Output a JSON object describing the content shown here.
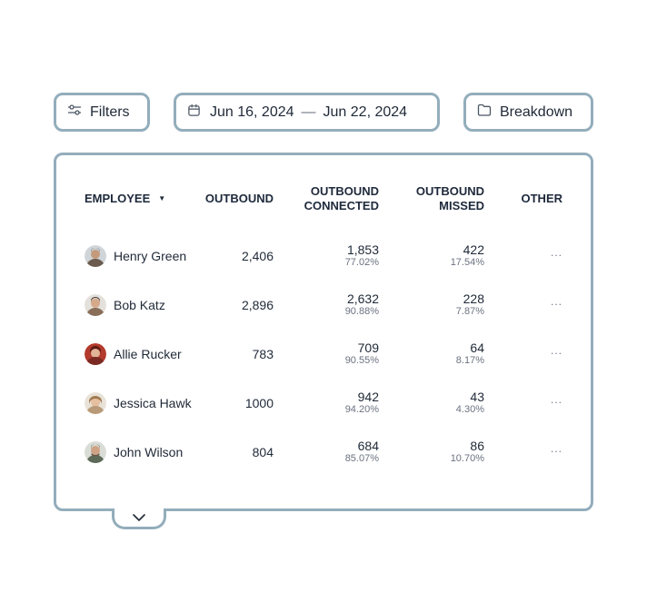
{
  "toolbar": {
    "filters_label": "Filters",
    "date_start": "Jun 16, 2024",
    "date_separator": "—",
    "date_end": "Jun 22, 2024",
    "breakdown_label": "Breakdown"
  },
  "table": {
    "headers": {
      "employee": "EMPLOYEE",
      "outbound": "OUTBOUND",
      "connected_line1": "OUTBOUND",
      "connected_line2": "CONNECTED",
      "missed_line1": "OUTBOUND",
      "missed_line2": "MISSED",
      "other": "OTHER"
    },
    "sort_indicator": "▼",
    "rows": [
      {
        "name": "Henry Green",
        "outbound": "2,406",
        "connected": "1,853",
        "connected_pct": "77.02%",
        "missed": "422",
        "missed_pct": "17.54%",
        "other": "...",
        "avatar_color": "#6b5b4e"
      },
      {
        "name": "Bob Katz",
        "outbound": "2,896",
        "connected": "2,632",
        "connected_pct": "90.88%",
        "missed": "228",
        "missed_pct": "7.87%",
        "other": "...",
        "avatar_color": "#8a6e5a"
      },
      {
        "name": "Allie Rucker",
        "outbound": "783",
        "connected": "709",
        "connected_pct": "90.55%",
        "missed": "64",
        "missed_pct": "8.17%",
        "other": "...",
        "avatar_color": "#a33a2e"
      },
      {
        "name": "Jessica Hawk",
        "outbound": "1000",
        "connected": "942",
        "connected_pct": "94.20%",
        "missed": "43",
        "missed_pct": "4.30%",
        "other": "...",
        "avatar_color": "#b89a78"
      },
      {
        "name": "John Wilson",
        "outbound": "804",
        "connected": "684",
        "connected_pct": "85.07%",
        "missed": "86",
        "missed_pct": "10.70%",
        "other": "...",
        "avatar_color": "#5d6a58"
      }
    ]
  },
  "colors": {
    "border": "#93adbb",
    "text": "#1f2937",
    "muted": "#6b7280"
  },
  "icons": {
    "filters": "sliders-icon",
    "date": "calendar-icon",
    "breakdown": "folder-icon",
    "expand": "chevron-down-icon"
  }
}
